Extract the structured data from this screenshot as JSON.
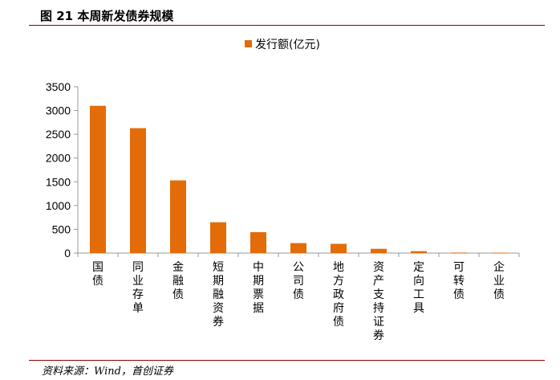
{
  "figure": {
    "title": "图 21 本周新发债券规模",
    "source": "资料来源：Wind，首创证券"
  },
  "colors": {
    "bar": "#E36C09",
    "rule": "#8b0000",
    "axis": "#999999"
  },
  "chart_data": {
    "type": "bar",
    "categories": [
      "国债",
      "同业存单",
      "金融债",
      "短期融资券",
      "中期票据",
      "公司债",
      "地方政府债",
      "资产支持证券",
      "定向工具",
      "可转债",
      "企业债"
    ],
    "series": [
      {
        "name": "发行额(亿元)",
        "values": [
          3100,
          2630,
          1530,
          650,
          440,
          210,
          195,
          90,
          40,
          10,
          8
        ]
      }
    ],
    "yticks": [
      0,
      500,
      1000,
      1500,
      2000,
      2500,
      3000,
      3500
    ],
    "ylim": [
      0,
      3500
    ],
    "legend_position": "top-center",
    "grid": false
  }
}
